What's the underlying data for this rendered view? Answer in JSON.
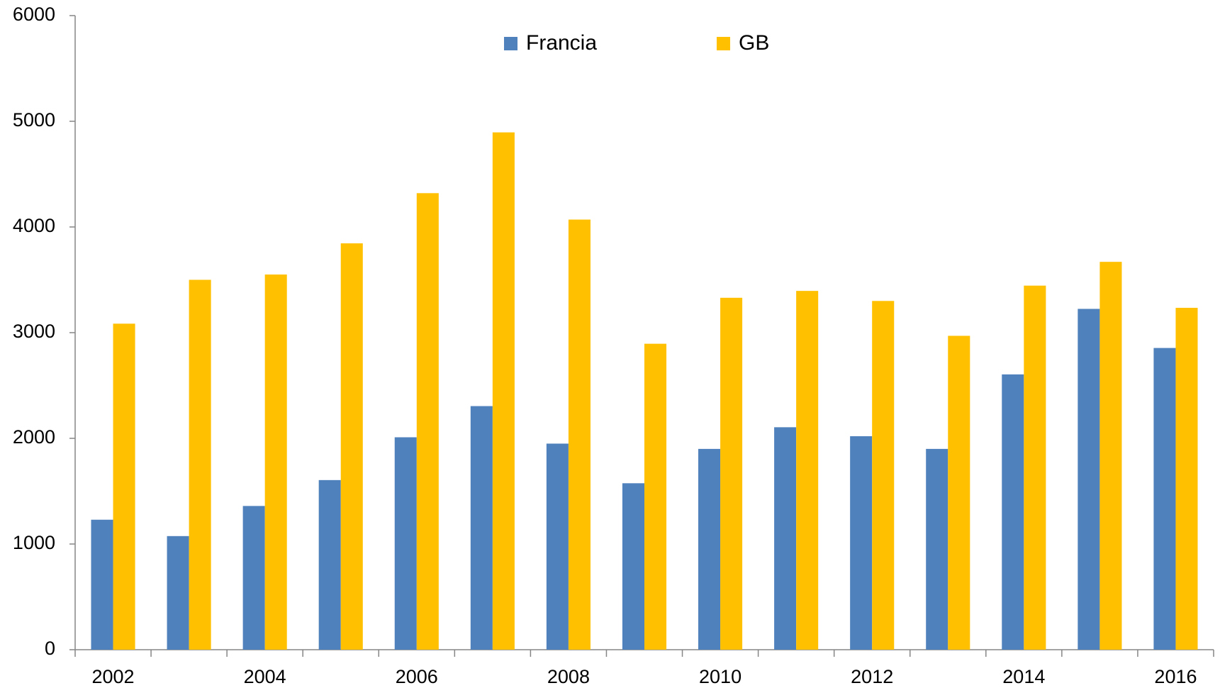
{
  "chart_data": {
    "type": "bar",
    "categories": [
      "2002",
      null,
      "2004",
      null,
      "2006",
      null,
      "2008",
      null,
      "2010",
      null,
      "2012",
      null,
      "2014",
      null,
      "2016"
    ],
    "series": [
      {
        "name": "Francia",
        "color": "#4f81bd",
        "values": [
          1230,
          1075,
          1360,
          1605,
          2010,
          2305,
          1950,
          1575,
          1900,
          2105,
          2020,
          1900,
          2605,
          3225,
          2855
        ]
      },
      {
        "name": "GB",
        "color": "#ffc000",
        "values": [
          3085,
          3500,
          3550,
          3845,
          4320,
          4895,
          4070,
          2895,
          3330,
          3395,
          3300,
          2970,
          3445,
          3670,
          3235
        ]
      }
    ],
    "ylim": [
      0,
      6000
    ],
    "yticks": [
      0,
      1000,
      2000,
      3000,
      4000,
      5000,
      6000
    ],
    "grid": false,
    "legend": "top"
  }
}
